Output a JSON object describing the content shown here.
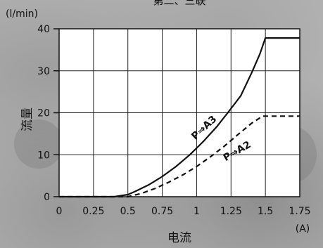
{
  "chart_data": {
    "type": "line",
    "title": "第二、三联",
    "xlabel": "电流",
    "xunit": "(A)",
    "ylabel": "流量",
    "yunit": "(l/min)",
    "xlim": [
      0,
      1.75
    ],
    "ylim": [
      0,
      40
    ],
    "xticks": [
      "0",
      "0.25",
      "0.5",
      "0.75",
      "1",
      "1.25",
      "1.5",
      "1.75"
    ],
    "yticks": [
      "0",
      "10",
      "20",
      "30",
      "40"
    ],
    "grid": true,
    "series": [
      {
        "name": "P⇒A3",
        "style": "solid",
        "x": [
          0,
          0.4,
          0.5,
          0.55,
          0.65,
          0.75,
          0.85,
          0.95,
          1.05,
          1.15,
          1.25,
          1.32,
          1.4,
          1.46,
          1.5,
          1.75
        ],
        "y": [
          0,
          0,
          0.5,
          1.2,
          2.8,
          4.8,
          7.2,
          10.0,
          13.2,
          16.8,
          21.0,
          24.0,
          29.5,
          34.0,
          37.8,
          37.8
        ]
      },
      {
        "name": "P⇒A2",
        "style": "dashed",
        "x": [
          0,
          0.5,
          0.6,
          0.7,
          0.8,
          0.9,
          1.0,
          1.1,
          1.2,
          1.3,
          1.4,
          1.48,
          1.75
        ],
        "y": [
          0,
          0,
          0.8,
          2.0,
          3.5,
          5.2,
          7.2,
          9.5,
          12.0,
          14.8,
          17.5,
          19.2,
          19.2
        ]
      }
    ]
  }
}
